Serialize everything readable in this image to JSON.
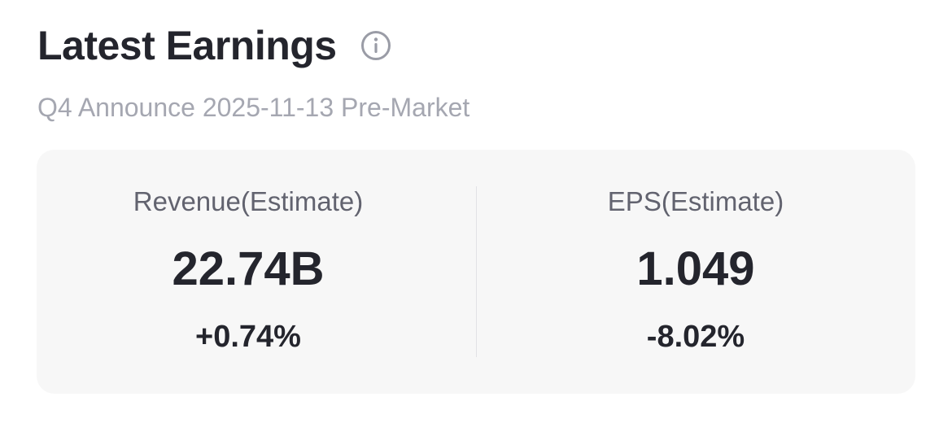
{
  "header": {
    "title": "Latest Earnings",
    "info_icon": "info-circle-icon"
  },
  "subtitle": "Q4 Announce 2025-11-13 Pre-Market",
  "metrics": [
    {
      "label": "Revenue(Estimate)",
      "value": "22.74B",
      "change": "+0.74%"
    },
    {
      "label": "EPS(Estimate)",
      "value": "1.049",
      "change": "-8.02%"
    }
  ],
  "colors": {
    "title": "#24252d",
    "subtitle": "#a5a7b1",
    "card_background": "#f7f7f7",
    "label": "#62636f",
    "icon": "#9a9ca6"
  }
}
